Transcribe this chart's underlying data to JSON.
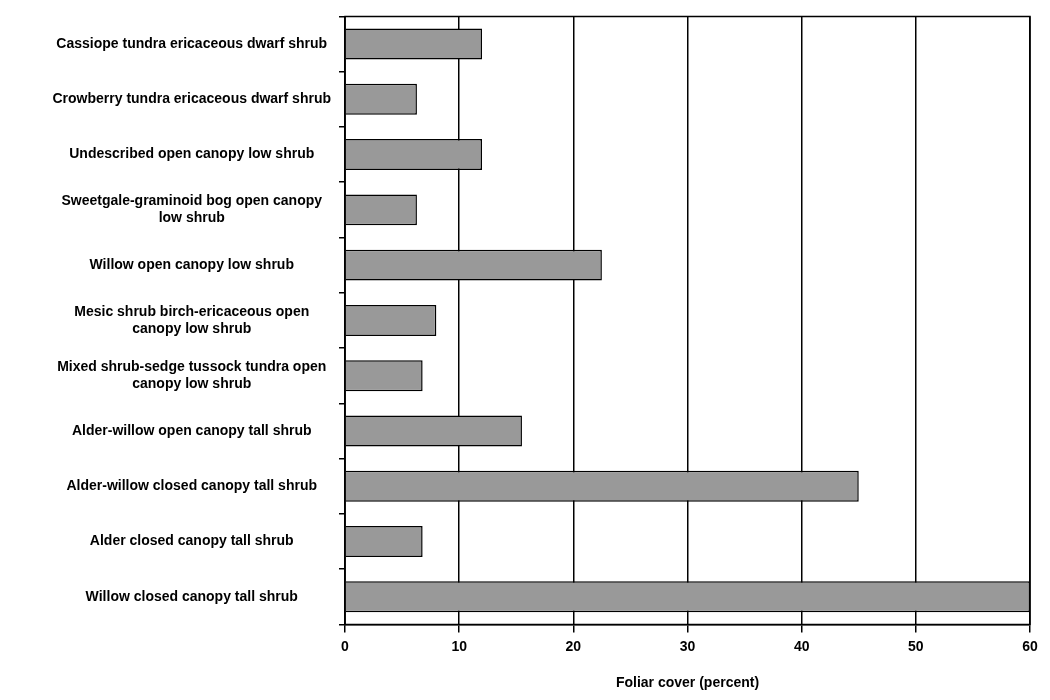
{
  "chart_data": {
    "type": "bar",
    "orientation": "horizontal",
    "xlabel": "Foliar cover (percent)",
    "categories": [
      "Cassiope tundra ericaceous dwarf shrub",
      "Crowberry tundra ericaceous dwarf shrub",
      "Undescribed open canopy low shrub",
      "Sweetgale-graminoid bog open canopy low shrub",
      "Willow open canopy low shrub",
      "Mesic shrub birch-ericaceous open canopy low shrub",
      "Mixed shrub-sedge tussock tundra open canopy low shrub",
      "Alder-willow open canopy tall shrub",
      "Alder-willow closed canopy tall shrub",
      "Alder closed canopy tall shrub",
      "Willow closed canopy tall shrub"
    ],
    "values": [
      12,
      6.3,
      12,
      6.3,
      22.5,
      8,
      6.8,
      15.5,
      45,
      6.8,
      60
    ],
    "color": "#999999",
    "xlim": [
      0,
      60
    ],
    "xticks": [
      0,
      10,
      20,
      30,
      40,
      50,
      60
    ],
    "grid": "x",
    "legend": false
  }
}
